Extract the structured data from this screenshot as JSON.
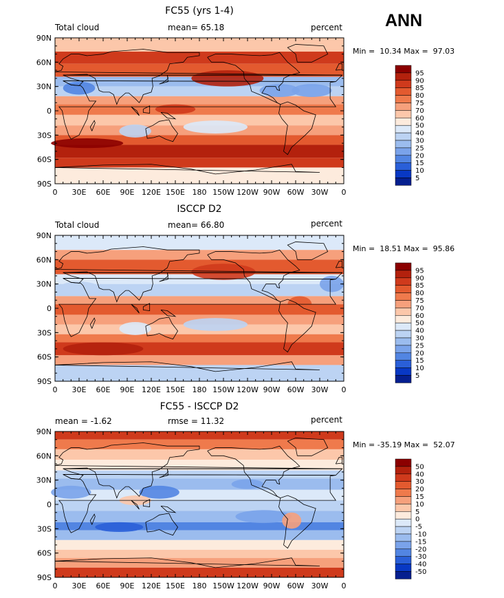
{
  "season": "ANN",
  "chart_data": [
    {
      "type": "heatmap",
      "title": "FC55 (yrs 1-4)",
      "left_label": "Total cloud",
      "center_label": "mean=  65.18",
      "right_label": "percent",
      "mean": 65.18,
      "min": 10.34,
      "max": 97.03,
      "stats_text": "Min =  10.34 Max =  97.03",
      "colorbar_levels": [
        "95",
        "90",
        "85",
        "80",
        "75",
        "70",
        "60",
        "50",
        "40",
        "30",
        "25",
        "20",
        "15",
        "10",
        "5"
      ],
      "colorbar_colors": [
        "#8b0000",
        "#b3210d",
        "#cf3a1c",
        "#e35a2f",
        "#ef7a4c",
        "#f6a07c",
        "#fcc7aa",
        "#fdebdd",
        "#dce9f9",
        "#bcd3f3",
        "#9bbcee",
        "#7aa3ea",
        "#5285e2",
        "#2a5fd8",
        "#0838c4",
        "#051f8f"
      ],
      "x_ticks": [
        "0",
        "30E",
        "60E",
        "90E",
        "120E",
        "150E",
        "180",
        "150W",
        "120W",
        "90W",
        "60W",
        "30W",
        "0"
      ],
      "y_ticks": [
        "90N",
        "60N",
        "30N",
        "0",
        "30S",
        "60S",
        "90S"
      ]
    },
    {
      "type": "heatmap",
      "title": "ISCCP D2",
      "left_label": "Total cloud",
      "center_label": "mean=  66.80",
      "right_label": "percent",
      "mean": 66.8,
      "min": 18.51,
      "max": 95.86,
      "stats_text": "Min =  18.51 Max =  95.86",
      "colorbar_levels": [
        "95",
        "90",
        "85",
        "80",
        "75",
        "70",
        "60",
        "50",
        "40",
        "30",
        "25",
        "20",
        "15",
        "10",
        "5"
      ],
      "colorbar_colors": [
        "#8b0000",
        "#b3210d",
        "#cf3a1c",
        "#e35a2f",
        "#ef7a4c",
        "#f6a07c",
        "#fcc7aa",
        "#fdebdd",
        "#dce9f9",
        "#bcd3f3",
        "#9bbcee",
        "#7aa3ea",
        "#5285e2",
        "#2a5fd8",
        "#0838c4",
        "#051f8f"
      ],
      "x_ticks": [
        "0",
        "30E",
        "60E",
        "90E",
        "120E",
        "150E",
        "180",
        "150W",
        "120W",
        "90W",
        "60W",
        "30W",
        "0"
      ],
      "y_ticks": [
        "90N",
        "60N",
        "30N",
        "0",
        "30S",
        "60S",
        "90S"
      ]
    },
    {
      "type": "heatmap",
      "title": "FC55 - ISCCP D2",
      "left_label": "mean =  -1.62",
      "center_label": "rmse =  11.32",
      "right_label": "percent",
      "mean": -1.62,
      "rmse": 11.32,
      "min": -35.19,
      "max": 52.07,
      "stats_text": "Min = -35.19 Max =  52.07",
      "colorbar_levels": [
        "50",
        "40",
        "30",
        "20",
        "15",
        "10",
        "5",
        "0",
        "-5",
        "-10",
        "-15",
        "-20",
        "-30",
        "-40",
        "-50"
      ],
      "colorbar_colors": [
        "#8b0000",
        "#b3210d",
        "#cf3a1c",
        "#e35a2f",
        "#ef7a4c",
        "#f6a07c",
        "#fcc7aa",
        "#fdebdd",
        "#dce9f9",
        "#bcd3f3",
        "#9bbcee",
        "#7aa3ea",
        "#5285e2",
        "#2a5fd8",
        "#0838c4",
        "#051f8f"
      ],
      "x_ticks": [
        "0",
        "30E",
        "60E",
        "90E",
        "120E",
        "150E",
        "180",
        "150W",
        "120W",
        "90W",
        "60W",
        "30W",
        "0"
      ],
      "y_ticks": [
        "90N",
        "60N",
        "30N",
        "0",
        "30S",
        "60S",
        "90S"
      ]
    }
  ]
}
